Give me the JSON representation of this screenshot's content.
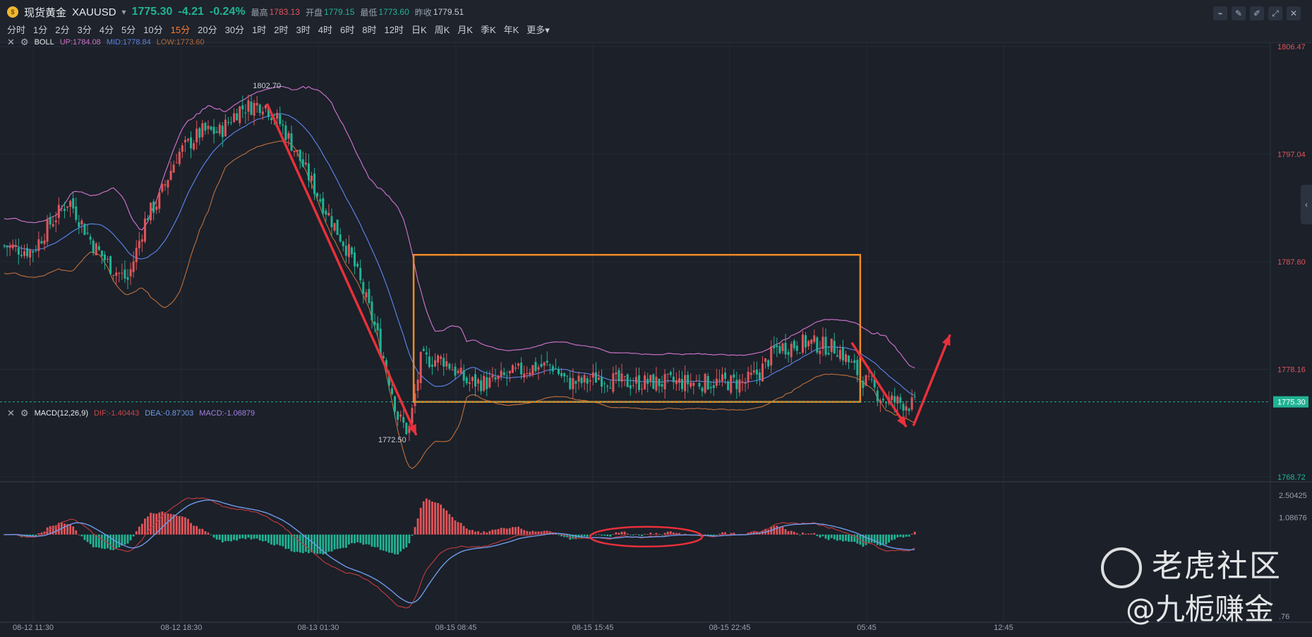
{
  "header": {
    "name": "现货黄金",
    "symbol": "XAUUSD",
    "price": "1775.30",
    "change": "-4.21",
    "change_pct": "-0.24%",
    "high_label": "最高",
    "high": "1783.13",
    "open_label": "开盘",
    "open": "1779.15",
    "low_label": "最低",
    "low": "1773.60",
    "prev_label": "昨收",
    "prev": "1779.51"
  },
  "periods": [
    "分时",
    "1分",
    "2分",
    "3分",
    "4分",
    "5分",
    "10分",
    "15分",
    "20分",
    "30分",
    "1时",
    "2时",
    "3时",
    "4时",
    "6时",
    "8时",
    "12时",
    "日K",
    "周K",
    "月K",
    "季K",
    "年K",
    "更多"
  ],
  "active_period": "15分",
  "boll": {
    "name": "BOLL",
    "up": "UP:1784.08",
    "mid": "MID:1778.84",
    "low": "LOW:1773.60"
  },
  "macd": {
    "name": "MACD(12,26,9)",
    "dif": "DIF:-1.40443",
    "dea": "DEA:-0.87003",
    "macd": "MACD:-1.06879"
  },
  "price_axis": [
    "1806.47",
    "1797.04",
    "1787.60",
    "1778.16",
    "1768.72"
  ],
  "current_price_tag": "1775.30",
  "macd_axis": [
    "2.50425",
    "1.08676",
    ".76"
  ],
  "time_axis": [
    "08-12 11:30",
    "08-12 18:30",
    "08-13 01:30",
    "08-15 08:45",
    "08-15 15:45",
    "08-15 22:45",
    "05:45",
    "12:45"
  ],
  "annotations": {
    "peak": "1802.70",
    "trough": "1772.50"
  },
  "watermark": {
    "line1": "老虎社区",
    "line2": "@九栀赚金"
  },
  "colors": {
    "up": "#e0555a",
    "down": "#20b394",
    "boll_up": "#c86fc4",
    "boll_mid": "#5b7fe0",
    "boll_low": "#b36a3a",
    "box": "#f08a24",
    "arrow": "#e8303a",
    "active": "#ff7a2a"
  }
}
